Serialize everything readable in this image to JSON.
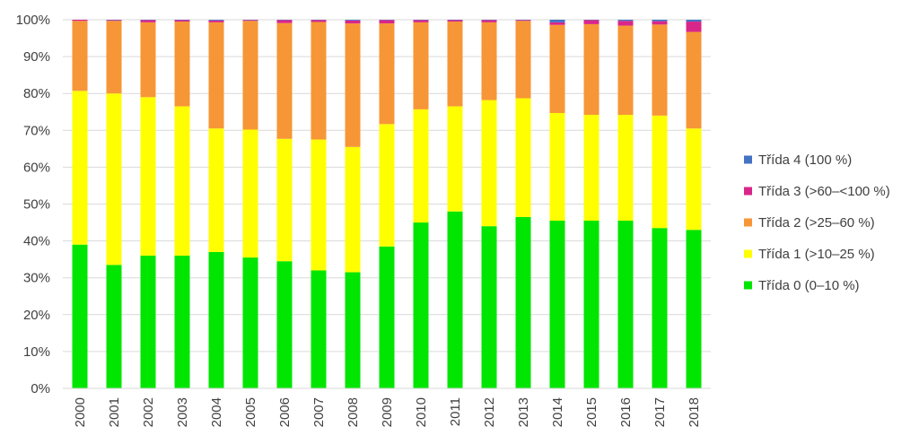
{
  "chart_data": {
    "type": "bar",
    "stacked": true,
    "percent_stacked": true,
    "categories": [
      "2000",
      "2001",
      "2002",
      "2003",
      "2004",
      "2005",
      "2006",
      "2007",
      "2008",
      "2009",
      "2010",
      "2011",
      "2012",
      "2013",
      "2014",
      "2015",
      "2016",
      "2017",
      "2018"
    ],
    "series": [
      {
        "name": "Třída 0 (0–10 %)",
        "color": "#00e600",
        "values": [
          39,
          33.5,
          36,
          36,
          37,
          35.5,
          34.5,
          32,
          31.5,
          38.5,
          45,
          48,
          44,
          46.5,
          45.5,
          45.5,
          45.5,
          43.5,
          43
        ]
      },
      {
        "name": "Třída 1 (>10–25 %)",
        "color": "#ffff00",
        "values": [
          41.7,
          46.5,
          43,
          40.5,
          33.5,
          34.7,
          33.2,
          35.5,
          34,
          33.2,
          30.7,
          28.5,
          34.2,
          32.2,
          29.2,
          28.7,
          28.7,
          30.5,
          27.5
        ]
      },
      {
        "name": "Třída 2 (>25–60 %)",
        "color": "#f79636",
        "values": [
          19,
          19.7,
          20.3,
          23,
          28.8,
          29.5,
          31.4,
          31.9,
          33.5,
          27.3,
          23.6,
          23,
          21.1,
          21,
          23.9,
          24.6,
          24.2,
          24.7,
          26.2
        ]
      },
      {
        "name": "Třída 3 (>60–<100 %)",
        "color": "#d9268a",
        "values": [
          0.3,
          0.2,
          0.6,
          0.4,
          0.5,
          0.2,
          0.8,
          0.5,
          0.8,
          0.9,
          0.6,
          0.4,
          0.6,
          0.2,
          0.7,
          1.1,
          1.3,
          0.9,
          2.8
        ]
      },
      {
        "name": "Třída 4 (100 %)",
        "color": "#4472c4",
        "values": [
          0,
          0.1,
          0.1,
          0.1,
          0.2,
          0.1,
          0.1,
          0.1,
          0.2,
          0.1,
          0.1,
          0.1,
          0.1,
          0.1,
          0.7,
          0.1,
          0.3,
          0.4,
          0.5
        ]
      }
    ],
    "y_ticks": [
      "0%",
      "10%",
      "20%",
      "30%",
      "40%",
      "50%",
      "60%",
      "70%",
      "80%",
      "90%",
      "100%"
    ],
    "ylim": [
      0,
      100
    ],
    "xlabel": "",
    "ylabel": "",
    "title": "",
    "grid": true,
    "legend_position": "right",
    "legend_order": [
      4,
      3,
      2,
      1,
      0
    ],
    "axis_color": "#d9d9d9",
    "grid_color": "#d9d9d9",
    "text_color": "#404040"
  }
}
